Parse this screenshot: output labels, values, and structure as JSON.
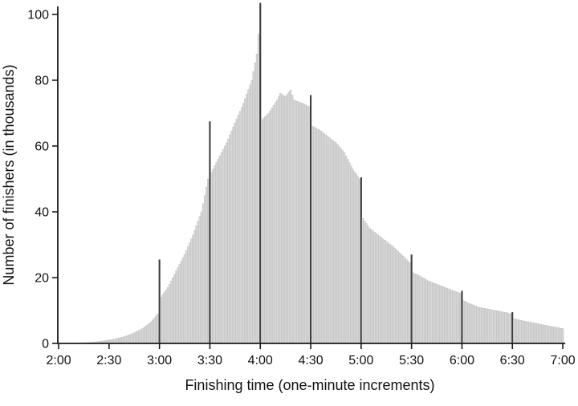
{
  "chart_data": {
    "type": "bar",
    "title": "",
    "xlabel": "Finishing time (one-minute increments)",
    "ylabel": "Number of finishers (in thousands)",
    "x_tick_labels": [
      "2:00",
      "2:30",
      "3:00",
      "3:30",
      "4:00",
      "4:30",
      "5:00",
      "5:30",
      "6:00",
      "6:30",
      "7:00"
    ],
    "x_tick_minutes": [
      120,
      150,
      180,
      210,
      240,
      270,
      300,
      330,
      360,
      390,
      420
    ],
    "y_ticks": [
      0,
      20,
      40,
      60,
      80,
      100
    ],
    "ylim": [
      0,
      105
    ],
    "x_start_minute": 120,
    "x_end_minute": 420,
    "bin_width_minutes": 1,
    "grid": "off",
    "legend": "none",
    "bar_color": "#d8d8d8",
    "bar_edge_color": "#aaaaaa",
    "spike_color": "#3d3d3d",
    "axis_color": "#1a1a1a",
    "spike_minutes": [
      180,
      210,
      240,
      270,
      300,
      330,
      360,
      390
    ],
    "values": [
      0.05,
      0.06,
      0.06,
      0.07,
      0.07,
      0.08,
      0.08,
      0.09,
      0.09,
      0.1,
      0.1,
      0.12,
      0.14,
      0.16,
      0.18,
      0.2,
      0.22,
      0.24,
      0.26,
      0.28,
      0.3,
      0.37,
      0.44,
      0.51,
      0.58,
      0.65,
      0.72,
      0.79,
      0.86,
      0.93,
      1.0,
      1.1,
      1.2,
      1.3,
      1.4,
      1.5,
      1.64,
      1.78,
      1.92,
      2.06,
      2.2,
      2.4,
      2.6,
      2.8,
      3.0,
      3.2,
      3.46,
      3.72,
      3.98,
      4.24,
      4.5,
      4.9,
      5.3,
      5.7,
      6.1,
      6.5,
      7.1,
      7.75,
      8.4,
      9.0,
      25.5,
      14,
      14.8,
      15.5,
      16.3,
      17,
      18,
      19,
      20,
      21,
      22,
      23,
      24,
      25,
      26,
      27,
      28.2,
      29.4,
      30.6,
      31.8,
      33,
      34.4,
      35.8,
      37.2,
      38.6,
      40,
      42.5,
      45,
      47.5,
      50,
      67.5,
      52,
      53,
      54,
      55,
      56,
      57,
      58,
      59,
      60,
      61,
      62.2,
      63.4,
      64.6,
      65.8,
      67,
      68.2,
      69.4,
      70.6,
      71.8,
      73,
      74.4,
      75.8,
      77.2,
      78.6,
      80,
      82.7,
      85.3,
      88,
      94,
      103.5,
      68,
      68.5,
      69,
      69.5,
      70,
      70.8,
      71.6,
      72.4,
      73.2,
      74,
      75,
      76,
      75.7,
      75.3,
      75,
      75.7,
      76.3,
      77,
      75.5,
      74,
      73.8,
      73.6,
      73.4,
      73.2,
      73,
      72.8,
      72.5,
      72.2,
      72,
      75.5,
      66,
      65.8,
      65.5,
      65.2,
      65,
      64.6,
      64.2,
      63.8,
      63.4,
      63,
      62.6,
      62.2,
      61.8,
      61.4,
      61,
      60.4,
      59.8,
      59.2,
      58.6,
      58,
      57,
      56,
      55,
      54,
      53,
      52.2,
      51.5,
      50.8,
      50,
      50.5,
      38,
      37.2,
      36.5,
      35.8,
      35,
      34.6,
      34.2,
      33.8,
      33.4,
      33,
      32.6,
      32.2,
      31.8,
      31.4,
      31,
      30.6,
      30.2,
      29.8,
      29.4,
      29,
      28.5,
      28,
      27.5,
      27,
      26.5,
      26,
      25.5,
      25,
      24.5,
      27,
      21.5,
      21.2,
      21,
      20.8,
      20.5,
      20.2,
      19.9,
      19.6,
      19.3,
      19,
      18.8,
      18.6,
      18.4,
      18.2,
      18,
      17.8,
      17.6,
      17.4,
      17.2,
      17,
      16.8,
      16.6,
      16.4,
      16.2,
      16,
      15.8,
      15.6,
      15.4,
      15.2,
      16,
      13,
      12.8,
      12.5,
      12.2,
      12,
      11.8,
      11.6,
      11.4,
      11.2,
      11,
      10.9,
      10.8,
      10.7,
      10.6,
      10.5,
      10.4,
      10.3,
      10.2,
      10.1,
      10,
      9.9,
      9.8,
      9.7,
      9.6,
      9.5,
      9.4,
      9.3,
      9.1,
      9,
      9.5,
      7.5,
      7.4,
      7.25,
      7.1,
      7,
      6.9,
      6.8,
      6.7,
      6.6,
      6.5,
      6.4,
      6.3,
      6.2,
      6.1,
      6,
      5.9,
      5.8,
      5.7,
      5.6,
      5.5,
      5.4,
      5.3,
      5.2,
      5.1,
      5,
      4.9,
      4.8,
      4.7,
      4.6,
      4.5
    ]
  }
}
